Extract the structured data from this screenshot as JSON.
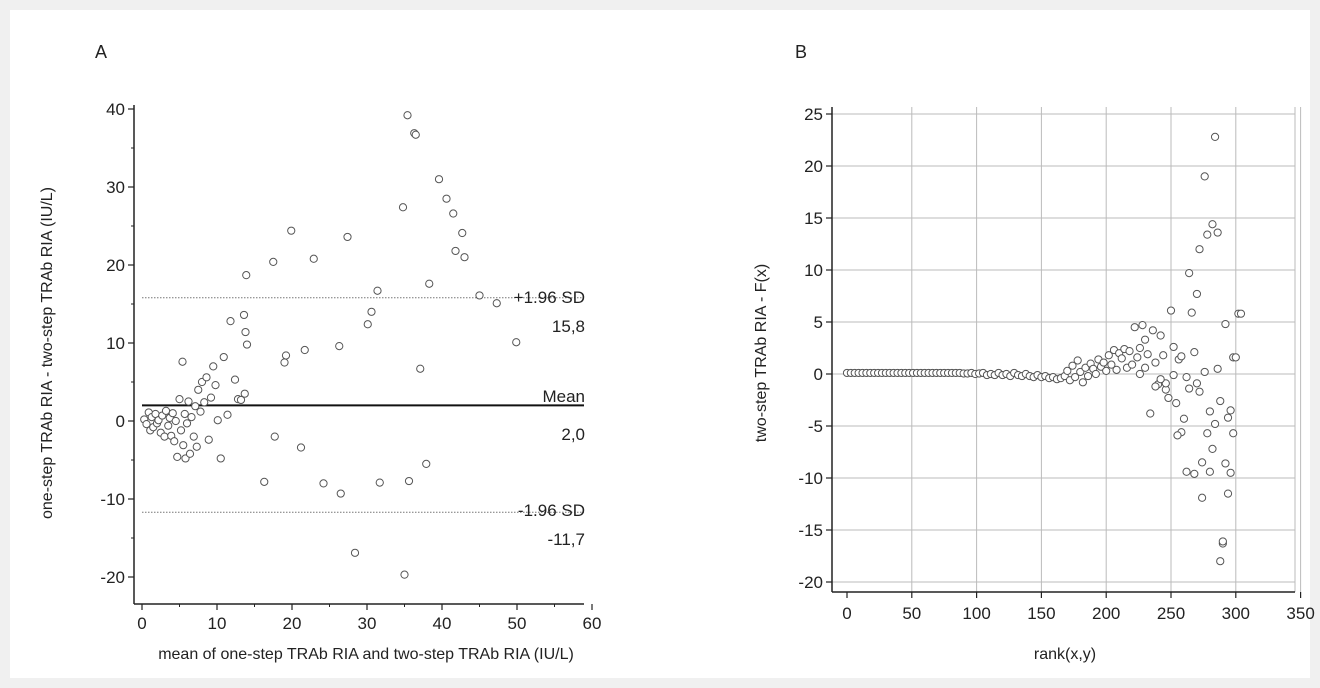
{
  "chart_data": [
    {
      "panel_label": "A",
      "type": "scatter",
      "title": "",
      "xlabel": "mean of one-step TRAb RIA and two-step TRAb RIA (IU/L)",
      "ylabel": "one-step TRAb RIA - two-step TRAb RIA (IU/L)",
      "xlim": [
        0,
        60
      ],
      "ylim": [
        -21,
        41
      ],
      "xticks": [
        0,
        10,
        20,
        30,
        40,
        50,
        60
      ],
      "yticks": [
        -20,
        -10,
        0,
        10,
        20,
        30,
        40
      ],
      "grid": false,
      "reference_lines": [
        {
          "name": "+1.96 SD",
          "value_label": "15,8",
          "y": 15.8,
          "style": "dotted"
        },
        {
          "name": "Mean",
          "value_label": "2,0",
          "y": 2.0,
          "style": "solid"
        },
        {
          "name": "-1.96 SD",
          "value_label": "-11,7",
          "y": -11.7,
          "style": "dotted"
        }
      ],
      "points": [
        [
          0.3,
          0.2
        ],
        [
          0.6,
          -0.4
        ],
        [
          0.9,
          1.1
        ],
        [
          1.1,
          -1.2
        ],
        [
          1.3,
          0.5
        ],
        [
          1.5,
          -0.8
        ],
        [
          1.8,
          0.9
        ],
        [
          2.0,
          -0.3
        ],
        [
          2.2,
          0.1
        ],
        [
          2.5,
          -1.5
        ],
        [
          2.7,
          0.7
        ],
        [
          3.0,
          -2.0
        ],
        [
          3.2,
          1.3
        ],
        [
          3.5,
          -0.6
        ],
        [
          3.7,
          0.4
        ],
        [
          3.9,
          -1.9
        ],
        [
          4.1,
          1.0
        ],
        [
          4.3,
          -2.6
        ],
        [
          4.5,
          0.0
        ],
        [
          4.7,
          -4.6
        ],
        [
          5.0,
          2.8
        ],
        [
          5.2,
          -1.2
        ],
        [
          5.4,
          7.6
        ],
        [
          5.5,
          -3.1
        ],
        [
          5.7,
          0.9
        ],
        [
          5.8,
          -4.8
        ],
        [
          6.0,
          -0.3
        ],
        [
          6.2,
          2.5
        ],
        [
          6.4,
          -4.2
        ],
        [
          6.6,
          0.5
        ],
        [
          6.9,
          -2.0
        ],
        [
          7.1,
          1.9
        ],
        [
          7.3,
          -3.3
        ],
        [
          7.5,
          4.0
        ],
        [
          7.8,
          1.2
        ],
        [
          8.0,
          5.0
        ],
        [
          8.3,
          2.4
        ],
        [
          8.6,
          5.6
        ],
        [
          8.9,
          -2.4
        ],
        [
          9.2,
          3.0
        ],
        [
          9.5,
          7.0
        ],
        [
          9.8,
          4.6
        ],
        [
          10.1,
          0.1
        ],
        [
          10.5,
          -4.8
        ],
        [
          10.9,
          8.2
        ],
        [
          11.4,
          0.8
        ],
        [
          11.8,
          12.8
        ],
        [
          12.4,
          5.3
        ],
        [
          12.8,
          2.8
        ],
        [
          13.2,
          2.7
        ],
        [
          13.6,
          13.6
        ],
        [
          13.7,
          3.5
        ],
        [
          13.8,
          11.4
        ],
        [
          13.9,
          18.7
        ],
        [
          14.0,
          9.8
        ],
        [
          16.3,
          -7.8
        ],
        [
          17.5,
          20.4
        ],
        [
          17.7,
          -2.0
        ],
        [
          19.0,
          7.5
        ],
        [
          19.2,
          8.4
        ],
        [
          19.9,
          24.4
        ],
        [
          21.2,
          -3.4
        ],
        [
          21.7,
          9.1
        ],
        [
          22.9,
          20.8
        ],
        [
          24.2,
          -8.0
        ],
        [
          26.3,
          9.6
        ],
        [
          26.5,
          -9.3
        ],
        [
          27.4,
          23.6
        ],
        [
          28.4,
          -16.9
        ],
        [
          30.1,
          12.4
        ],
        [
          30.6,
          14.0
        ],
        [
          31.4,
          16.7
        ],
        [
          31.7,
          -7.9
        ],
        [
          34.8,
          27.4
        ],
        [
          35.0,
          -19.7
        ],
        [
          35.4,
          39.2
        ],
        [
          35.6,
          -7.7
        ],
        [
          36.3,
          36.9
        ],
        [
          36.5,
          36.7
        ],
        [
          37.1,
          6.7
        ],
        [
          37.9,
          -5.5
        ],
        [
          38.3,
          17.6
        ],
        [
          39.6,
          31.0
        ],
        [
          40.6,
          28.5
        ],
        [
          41.5,
          26.6
        ],
        [
          41.8,
          21.8
        ],
        [
          42.7,
          24.1
        ],
        [
          43.0,
          21.0
        ],
        [
          45.0,
          16.1
        ],
        [
          47.3,
          15.1
        ],
        [
          49.9,
          10.1
        ]
      ]
    },
    {
      "panel_label": "B",
      "type": "scatter",
      "title": "",
      "xlabel": "rank(x,y)",
      "ylabel": "two-step TRAb RIA - F(x)",
      "xlim": [
        -5,
        360
      ],
      "ylim": [
        -21,
        26
      ],
      "xticks": [
        0,
        50,
        100,
        150,
        200,
        250,
        300,
        350
      ],
      "yticks": [
        -20,
        -15,
        -10,
        -5,
        0,
        5,
        10,
        15,
        20,
        25
      ],
      "grid": true,
      "points": [
        [
          0,
          0.1
        ],
        [
          3,
          0.1
        ],
        [
          6,
          0.1
        ],
        [
          9,
          0.1
        ],
        [
          12,
          0.1
        ],
        [
          15,
          0.1
        ],
        [
          18,
          0.1
        ],
        [
          21,
          0.1
        ],
        [
          24,
          0.1
        ],
        [
          27,
          0.1
        ],
        [
          30,
          0.1
        ],
        [
          33,
          0.1
        ],
        [
          36,
          0.1
        ],
        [
          39,
          0.1
        ],
        [
          42,
          0.1
        ],
        [
          45,
          0.1
        ],
        [
          48,
          0.1
        ],
        [
          51,
          0.1
        ],
        [
          54,
          0.1
        ],
        [
          57,
          0.1
        ],
        [
          60,
          0.1
        ],
        [
          63,
          0.1
        ],
        [
          66,
          0.1
        ],
        [
          69,
          0.1
        ],
        [
          72,
          0.1
        ],
        [
          75,
          0.1
        ],
        [
          78,
          0.1
        ],
        [
          81,
          0.1
        ],
        [
          84,
          0.1
        ],
        [
          87,
          0.1
        ],
        [
          90,
          0.05
        ],
        [
          93,
          0.05
        ],
        [
          96,
          0.1
        ],
        [
          99,
          0.0
        ],
        [
          102,
          0.05
        ],
        [
          105,
          0.1
        ],
        [
          108,
          -0.1
        ],
        [
          111,
          0.0
        ],
        [
          114,
          -0.1
        ],
        [
          117,
          0.1
        ],
        [
          120,
          -0.1
        ],
        [
          123,
          0.0
        ],
        [
          126,
          -0.2
        ],
        [
          129,
          0.1
        ],
        [
          132,
          -0.1
        ],
        [
          135,
          -0.2
        ],
        [
          138,
          0.0
        ],
        [
          141,
          -0.2
        ],
        [
          144,
          -0.3
        ],
        [
          147,
          -0.1
        ],
        [
          150,
          -0.3
        ],
        [
          153,
          -0.2
        ],
        [
          156,
          -0.4
        ],
        [
          159,
          -0.3
        ],
        [
          162,
          -0.5
        ],
        [
          165,
          -0.4
        ],
        [
          168,
          -0.2
        ],
        [
          170,
          0.3
        ],
        [
          172,
          -0.6
        ],
        [
          174,
          0.8
        ],
        [
          176,
          -0.3
        ],
        [
          178,
          1.3
        ],
        [
          180,
          0.2
        ],
        [
          182,
          -0.8
        ],
        [
          184,
          0.6
        ],
        [
          186,
          -0.2
        ],
        [
          188,
          1.0
        ],
        [
          190,
          0.5
        ],
        [
          192,
          0.0
        ],
        [
          194,
          1.4
        ],
        [
          196,
          0.7
        ],
        [
          198,
          1.1
        ],
        [
          200,
          0.3
        ],
        [
          202,
          1.8
        ],
        [
          204,
          0.9
        ],
        [
          206,
          2.3
        ],
        [
          208,
          0.4
        ],
        [
          210,
          2.0
        ],
        [
          212,
          1.5
        ],
        [
          214,
          2.4
        ],
        [
          216,
          0.6
        ],
        [
          218,
          2.2
        ],
        [
          220,
          0.9
        ],
        [
          222,
          4.5
        ],
        [
          224,
          1.6
        ],
        [
          226,
          2.5
        ],
        [
          228,
          4.7
        ],
        [
          230,
          3.3
        ],
        [
          232,
          1.9
        ],
        [
          234,
          -3.8
        ],
        [
          236,
          4.2
        ],
        [
          238,
          1.1
        ],
        [
          240,
          -1.0
        ],
        [
          242,
          3.7
        ],
        [
          244,
          1.8
        ],
        [
          246,
          -1.5
        ],
        [
          248,
          -2.3
        ],
        [
          250,
          6.1
        ],
        [
          252,
          2.6
        ],
        [
          254,
          -2.8
        ],
        [
          256,
          1.4
        ],
        [
          258,
          -5.6
        ],
        [
          260,
          -4.3
        ],
        [
          262,
          -9.4
        ],
        [
          264,
          9.7
        ],
        [
          266,
          5.9
        ],
        [
          268,
          -9.6
        ],
        [
          270,
          7.7
        ],
        [
          272,
          12.0
        ],
        [
          274,
          -8.5
        ],
        [
          276,
          19.0
        ],
        [
          278,
          13.4
        ],
        [
          280,
          -9.4
        ],
        [
          282,
          14.4
        ],
        [
          284,
          22.8
        ],
        [
          286,
          13.6
        ],
        [
          288,
          -18.0
        ],
        [
          290,
          -16.3
        ],
        [
          292,
          4.8
        ],
        [
          294,
          -11.5
        ],
        [
          296,
          -9.5
        ],
        [
          298,
          1.6
        ],
        [
          300,
          1.6
        ],
        [
          302,
          5.8
        ],
        [
          304,
          5.8
        ],
        [
          268,
          2.1
        ],
        [
          270,
          -0.9
        ],
        [
          272,
          -1.7
        ],
        [
          274,
          -11.9
        ],
        [
          276,
          0.2
        ],
        [
          278,
          -5.7
        ],
        [
          280,
          -3.6
        ],
        [
          282,
          -7.2
        ],
        [
          284,
          -4.8
        ],
        [
          286,
          0.5
        ],
        [
          288,
          -2.6
        ],
        [
          290,
          -16.1
        ],
        [
          292,
          -8.6
        ],
        [
          294,
          -4.2
        ],
        [
          296,
          -3.5
        ],
        [
          298,
          -5.7
        ],
        [
          255,
          -5.9
        ],
        [
          262,
          -0.3
        ],
        [
          264,
          -1.4
        ],
        [
          258,
          1.7
        ],
        [
          252,
          -0.1
        ],
        [
          246,
          -0.9
        ],
        [
          242,
          -0.5
        ],
        [
          238,
          -1.2
        ],
        [
          230,
          0.6
        ],
        [
          226,
          0.0
        ]
      ]
    }
  ]
}
